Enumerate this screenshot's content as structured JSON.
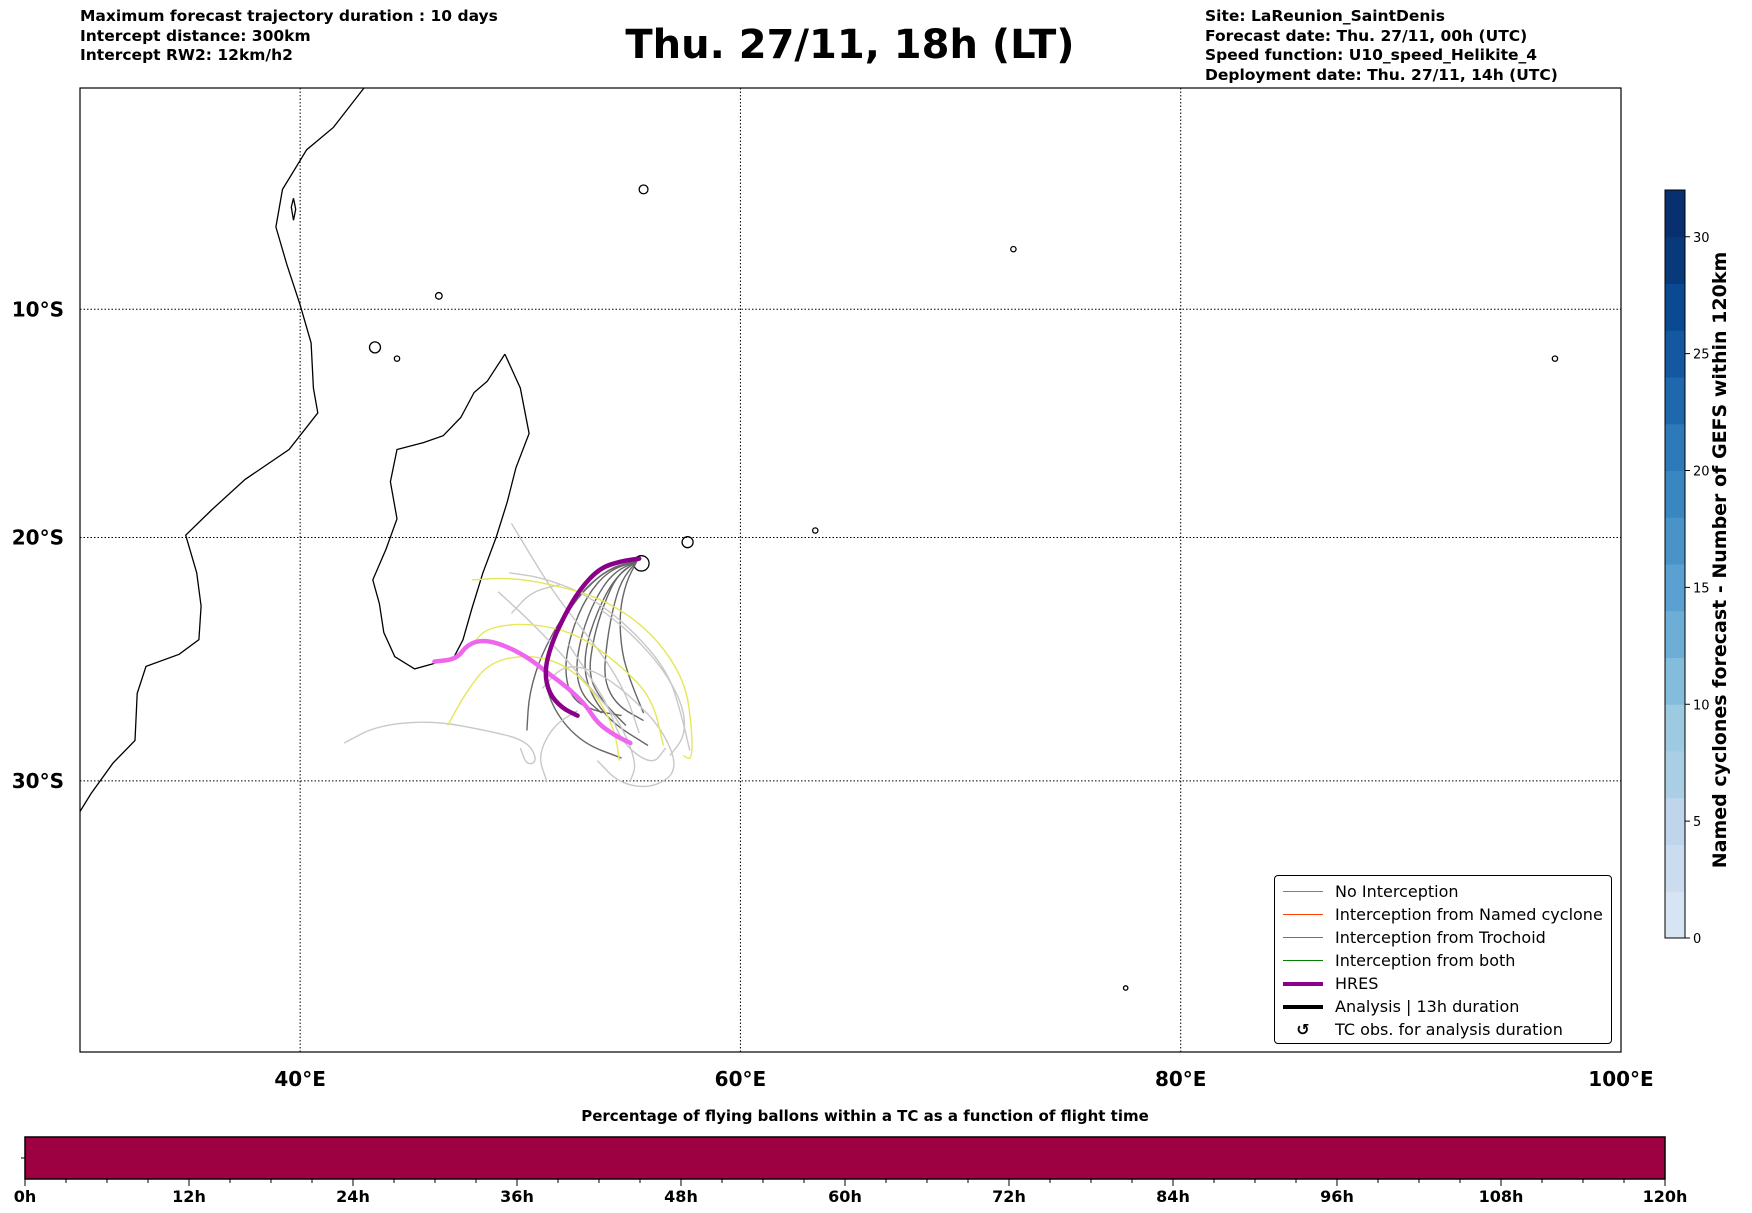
{
  "header": {
    "left": [
      "Maximum forecast trajectory duration : 10 days",
      "Intercept distance: 300km",
      "Intercept RW2: 12km/h2"
    ],
    "title": "Thu. 27/11, 18h (LT)",
    "right": [
      "Site: LaReunion_SaintDenis",
      "Forecast date: Thu. 27/11, 00h (UTC)",
      "Speed function: U10_speed_Helikite_4",
      "Deployment date: Thu. 27/11, 14h (UTC)"
    ]
  },
  "chart_data": {
    "type": "line",
    "map_extent": {
      "lon": [
        30,
        100
      ],
      "lat": [
        -40,
        0
      ]
    },
    "x_ticks": [
      "40°E",
      "60°E",
      "80°E",
      "100°E"
    ],
    "x_tick_values": [
      40,
      60,
      80,
      100
    ],
    "y_ticks": [
      "10°S",
      "20°S",
      "30°S"
    ],
    "y_tick_values": [
      -10,
      -20,
      -30
    ],
    "legend": [
      {
        "label": "No Interception",
        "color": "#808080"
      },
      {
        "label": "Interception from Named cyclone",
        "color": "#ff4500"
      },
      {
        "label": "Interception from Trochoid",
        "color": "#808000"
      },
      {
        "label": "Interception from both",
        "color": "#008000"
      },
      {
        "label": "HRES",
        "color": "#8b008b"
      },
      {
        "label": "Analysis | 13h duration",
        "color": "#000000"
      },
      {
        "label": "TC obs. for analysis duration",
        "color": "#000000"
      }
    ],
    "series": [
      {
        "name": "HRES",
        "color": "#8b008b",
        "points": [
          [
            55.4,
            -20.9
          ],
          [
            54.6,
            -21.0
          ],
          [
            53.6,
            -21.3
          ],
          [
            52.7,
            -22.2
          ],
          [
            52.0,
            -23.3
          ],
          [
            51.4,
            -24.5
          ],
          [
            51.1,
            -25.6
          ],
          [
            51.3,
            -26.5
          ],
          [
            51.9,
            -27.1
          ],
          [
            52.6,
            -27.4
          ]
        ]
      },
      {
        "name": "Analysis trajectory",
        "color": "#ee66ee",
        "points": [
          [
            55.0,
            -28.5
          ],
          [
            54.3,
            -28.2
          ],
          [
            53.5,
            -27.7
          ],
          [
            53.0,
            -27.0
          ],
          [
            52.2,
            -26.3
          ],
          [
            51.3,
            -25.7
          ],
          [
            50.3,
            -25.0
          ],
          [
            49.2,
            -24.5
          ],
          [
            48.3,
            -24.3
          ],
          [
            47.6,
            -24.5
          ],
          [
            47.1,
            -25.1
          ],
          [
            46.1,
            -25.2
          ]
        ]
      },
      {
        "name": "No Interception dark",
        "color": "#666666",
        "tracks": [
          [
            [
              55.3,
              -21.0
            ],
            [
              54.0,
              -21.4
            ],
            [
              53.0,
              -22.5
            ],
            [
              52.3,
              -24
            ],
            [
              52.0,
              -25.5
            ],
            [
              52.3,
              -26.7
            ],
            [
              53.3,
              -27.2
            ],
            [
              54.6,
              -27.4
            ]
          ],
          [
            [
              55.3,
              -21.0
            ],
            [
              54.2,
              -21.5
            ],
            [
              53.4,
              -22.6
            ],
            [
              52.8,
              -24
            ],
            [
              52.5,
              -25.5
            ],
            [
              52.8,
              -26.6
            ],
            [
              53.7,
              -27.3
            ]
          ],
          [
            [
              55.3,
              -21.0
            ],
            [
              54.4,
              -21.6
            ],
            [
              53.8,
              -22.8
            ],
            [
              53.3,
              -24.3
            ],
            [
              53.1,
              -25.8
            ],
            [
              53.7,
              -26.8
            ],
            [
              54.8,
              -27.8
            ]
          ],
          [
            [
              55.3,
              -21.0
            ],
            [
              54.6,
              -21.8
            ],
            [
              54.2,
              -23
            ],
            [
              53.9,
              -24.6
            ],
            [
              53.8,
              -26
            ],
            [
              54.4,
              -27
            ],
            [
              55.6,
              -27.6
            ]
          ],
          [
            [
              55.3,
              -21.0
            ],
            [
              54.0,
              -21.3
            ],
            [
              52.6,
              -22.5
            ],
            [
              51.6,
              -24
            ],
            [
              51.0,
              -25.6
            ],
            [
              51.5,
              -27.2
            ],
            [
              52.8,
              -28.5
            ],
            [
              54.6,
              -29.1
            ]
          ],
          [
            [
              55.3,
              -21.0
            ],
            [
              53.8,
              -21.4
            ],
            [
              52.2,
              -22.9
            ],
            [
              51.0,
              -24.8
            ],
            [
              50.4,
              -26.5
            ],
            [
              50.3,
              -28.0
            ]
          ],
          [
            [
              55.3,
              -21.0
            ],
            [
              54.8,
              -21.9
            ],
            [
              54.5,
              -23.2
            ],
            [
              54.6,
              -24.8
            ],
            [
              55.0,
              -26.0
            ],
            [
              55.6,
              -27.3
            ]
          ],
          [
            [
              55.3,
              -21.0
            ],
            [
              54.3,
              -21.7
            ],
            [
              53.5,
              -23.1
            ],
            [
              52.9,
              -24.8
            ],
            [
              53.0,
              -26.2
            ],
            [
              54.0,
              -27.6
            ],
            [
              55.8,
              -28.6
            ]
          ]
        ]
      },
      {
        "name": "No Interception light",
        "color": "#c8c8c8",
        "tracks": [
          [
            [
              49.6,
              -19.4
            ],
            [
              50.5,
              -20.8
            ],
            [
              51.5,
              -22.3
            ],
            [
              52.5,
              -23.5
            ],
            [
              53.8,
              -25
            ],
            [
              54.8,
              -26.5
            ],
            [
              55.4,
              -28.1
            ]
          ],
          [
            [
              51.8,
              -22.0
            ],
            [
              50.5,
              -22.3
            ],
            [
              49.6,
              -23.2
            ]
          ],
          [
            [
              49.5,
              -21.5
            ],
            [
              51.0,
              -21.7
            ],
            [
              53.0,
              -22.4
            ],
            [
              55.0,
              -23.8
            ],
            [
              56.7,
              -25.6
            ],
            [
              57.3,
              -27.3
            ],
            [
              57.7,
              -28.8
            ]
          ],
          [
            [
              42.0,
              -28.5
            ],
            [
              43.5,
              -27.8
            ],
            [
              46.0,
              -27.6
            ],
            [
              48.5,
              -28.0
            ],
            [
              50.3,
              -28.4
            ],
            [
              50.8,
              -29.2
            ],
            [
              50.3,
              -29.4
            ],
            [
              50.0,
              -28.7
            ]
          ],
          [
            [
              51.0,
              -26.3
            ],
            [
              52.0,
              -25.3
            ],
            [
              53.5,
              -25.6
            ],
            [
              55.0,
              -26.6
            ],
            [
              56.5,
              -28.0
            ],
            [
              57.2,
              -29.6
            ],
            [
              56.0,
              -30.3
            ],
            [
              54.5,
              -30.1
            ],
            [
              53.5,
              -29.2
            ]
          ],
          [
            [
              49.0,
              -22.3
            ],
            [
              50.3,
              -23.4
            ],
            [
              51.8,
              -24.8
            ],
            [
              53.3,
              -26.4
            ],
            [
              54.5,
              -27.6
            ],
            [
              55.3,
              -29.3
            ],
            [
              55.0,
              -30.0
            ]
          ],
          [
            [
              52.2,
              -24.5
            ],
            [
              53.0,
              -25.6
            ],
            [
              54.0,
              -27.0
            ],
            [
              54.6,
              -28.5
            ],
            [
              56.0,
              -29.4
            ],
            [
              56.6,
              -28.7
            ]
          ],
          [
            [
              51.2,
              -30.0
            ],
            [
              50.8,
              -29.0
            ],
            [
              51.5,
              -27.8
            ],
            [
              52.6,
              -27.2
            ]
          ],
          [
            [
              53.6,
              -23.0
            ],
            [
              55.0,
              -24.0
            ],
            [
              56.5,
              -25.5
            ],
            [
              57.4,
              -27.0
            ],
            [
              57.5,
              -28.2
            ],
            [
              56.8,
              -29.0
            ]
          ]
        ]
      },
      {
        "name": "Yellow tracks",
        "color": "#e6e65a",
        "tracks": [
          [
            [
              47.8,
              -21.8
            ],
            [
              49.5,
              -21.7
            ],
            [
              51.5,
              -22.0
            ],
            [
              53.8,
              -22.6
            ],
            [
              56.0,
              -24.0
            ],
            [
              57.5,
              -26
            ],
            [
              57.8,
              -28
            ],
            [
              57.8,
              -29.2
            ],
            [
              57.4,
              -29.0
            ]
          ],
          [
            [
              47.9,
              -24.4
            ],
            [
              48.5,
              -23.8
            ],
            [
              50.3,
              -23.6
            ],
            [
              52.5,
              -24.0
            ],
            [
              54.5,
              -25.3
            ],
            [
              56.0,
              -26.7
            ],
            [
              56.5,
              -28.6
            ]
          ],
          [
            [
              46.7,
              -27.8
            ],
            [
              47.5,
              -26.5
            ],
            [
              48.6,
              -25.2
            ],
            [
              50.5,
              -24.9
            ],
            [
              52.2,
              -25.4
            ],
            [
              53.5,
              -26.6
            ],
            [
              54.3,
              -28.0
            ],
            [
              54.5,
              -29.2
            ]
          ]
        ]
      }
    ]
  },
  "legend_items": [
    "No Interception",
    "Interception from Named cyclone",
    "Interception from Trochoid",
    "Interception from both",
    "HRES",
    "Analysis | 13h duration",
    "TC obs. for analysis duration"
  ],
  "colorbar": {
    "label": "Named cyclones forecast - Number of GEFS within 120km",
    "ticks": [
      "0",
      "5",
      "10",
      "15",
      "20",
      "25",
      "30"
    ],
    "tick_values": [
      0,
      5,
      10,
      15,
      20,
      25,
      30
    ],
    "range": [
      0,
      32
    ],
    "colors": [
      "#d6e4f3",
      "#cadcee",
      "#bfd5eb",
      "#aacfe5",
      "#9ecae1",
      "#84bcdb",
      "#6eaed6",
      "#5aa0d0",
      "#4a93c8",
      "#3a86c0",
      "#2e79b7",
      "#2068ad",
      "#1458a2",
      "#0a4a92",
      "#08397a",
      "#083070"
    ]
  },
  "flight_bar": {
    "title": "Percentage of flying ballons within a TC as a function of flight time",
    "ticks": [
      "0h",
      "12h",
      "24h",
      "36h",
      "48h",
      "60h",
      "72h",
      "84h",
      "96h",
      "108h",
      "120h"
    ],
    "tick_values": [
      0,
      12,
      24,
      36,
      48,
      60,
      72,
      84,
      96,
      108,
      120
    ],
    "fill_color": "#9e0142",
    "values_percent_uniform": 100
  }
}
